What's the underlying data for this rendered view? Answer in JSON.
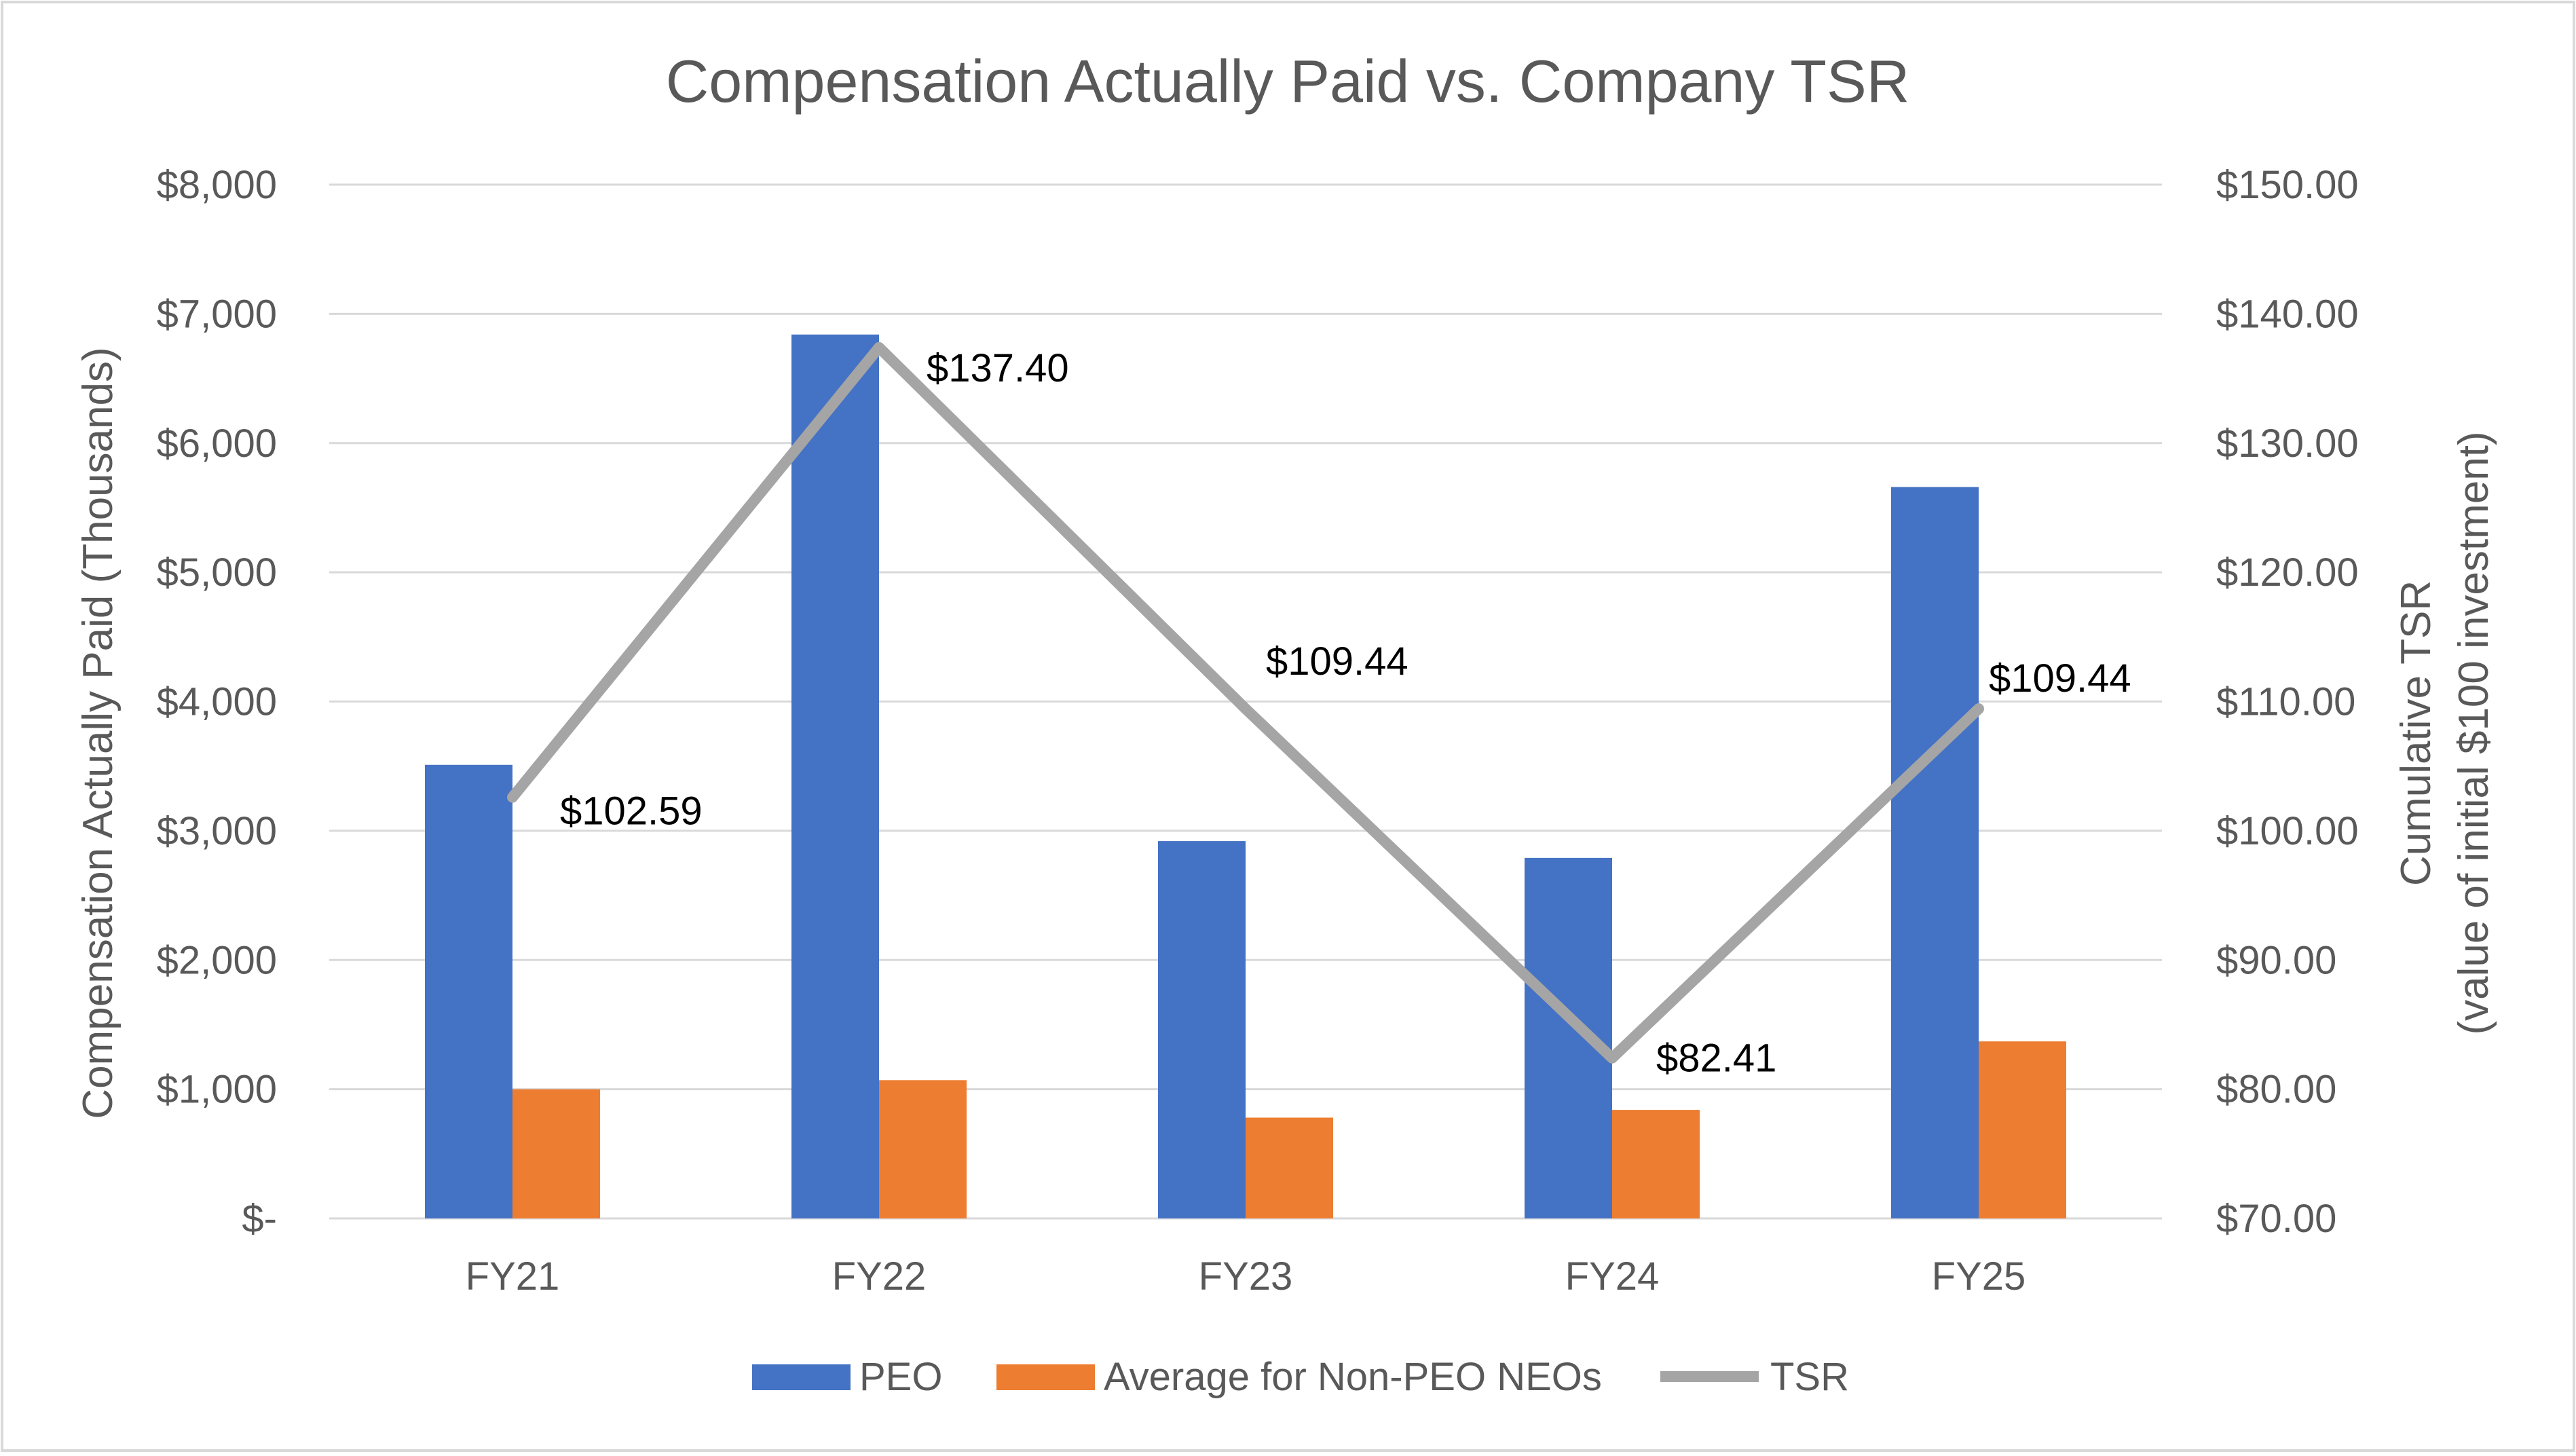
{
  "chart_data": {
    "type": "bar",
    "title": "Compensation Actually Paid vs. Company TSR",
    "categories": [
      "FY21",
      "FY22",
      "FY23",
      "FY24",
      "FY25"
    ],
    "ylabel": "Compensation Actually Paid (Thousands)",
    "y2label_line1": "Cumulative TSR",
    "y2label_line2": "(value of initial $100 investment)",
    "ylim": [
      0,
      8000
    ],
    "y2lim": [
      70,
      150
    ],
    "y_ticks": [
      {
        "value": 0,
        "label": "$-"
      },
      {
        "value": 1000,
        "label": "$1,000"
      },
      {
        "value": 2000,
        "label": "$2,000"
      },
      {
        "value": 3000,
        "label": "$3,000"
      },
      {
        "value": 4000,
        "label": "$4,000"
      },
      {
        "value": 5000,
        "label": "$5,000"
      },
      {
        "value": 6000,
        "label": "$6,000"
      },
      {
        "value": 7000,
        "label": "$7,000"
      },
      {
        "value": 8000,
        "label": "$8,000"
      }
    ],
    "y2_ticks": [
      {
        "value": 70,
        "label": "$70.00"
      },
      {
        "value": 80,
        "label": "$80.00"
      },
      {
        "value": 90,
        "label": "$90.00"
      },
      {
        "value": 100,
        "label": "$100.00"
      },
      {
        "value": 110,
        "label": "$110.00"
      },
      {
        "value": 120,
        "label": "$120.00"
      },
      {
        "value": 130,
        "label": "$130.00"
      },
      {
        "value": 140,
        "label": "$140.00"
      },
      {
        "value": 150,
        "label": "$150.00"
      }
    ],
    "series": [
      {
        "name": "PEO",
        "kind": "bar",
        "axis": "left",
        "color": "#4472C4",
        "values": [
          3510,
          6840,
          2920,
          2790,
          5660
        ]
      },
      {
        "name": "Average for Non-PEO NEOs",
        "kind": "bar",
        "axis": "left",
        "color": "#ED7D31",
        "values": [
          1000,
          1070,
          780,
          840,
          1370
        ]
      },
      {
        "name": "TSR",
        "kind": "line",
        "axis": "right",
        "color": "#A5A5A5",
        "values": [
          102.59,
          137.4,
          109.44,
          82.41,
          109.44
        ],
        "labels": [
          "$102.59",
          "$137.40",
          "$109.44",
          "$82.41",
          "$109.44"
        ]
      }
    ],
    "grid": true,
    "legend": "bottom"
  }
}
